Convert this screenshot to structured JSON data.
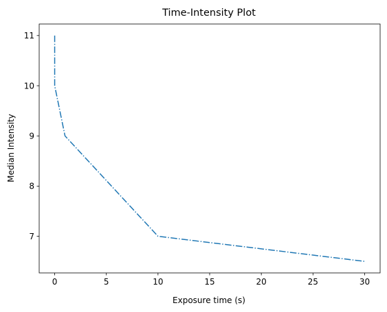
{
  "chart_data": {
    "type": "line",
    "title": "Time-Intensity Plot",
    "xlabel": "Exposure time (s)",
    "ylabel": "Median Intensity",
    "xlim": [
      -1.5,
      31.5
    ],
    "ylim": [
      6.27,
      11.23
    ],
    "xticks": [
      0,
      5,
      10,
      15,
      20,
      25,
      30
    ],
    "yticks": [
      7,
      8,
      9,
      10,
      11
    ],
    "grid": false,
    "series": [
      {
        "color": "#1f77b4",
        "linestyle": "dash-dot",
        "x": [
          0,
          0,
          1,
          10,
          30
        ],
        "y": [
          11,
          10,
          9,
          7,
          6.5
        ]
      }
    ]
  }
}
